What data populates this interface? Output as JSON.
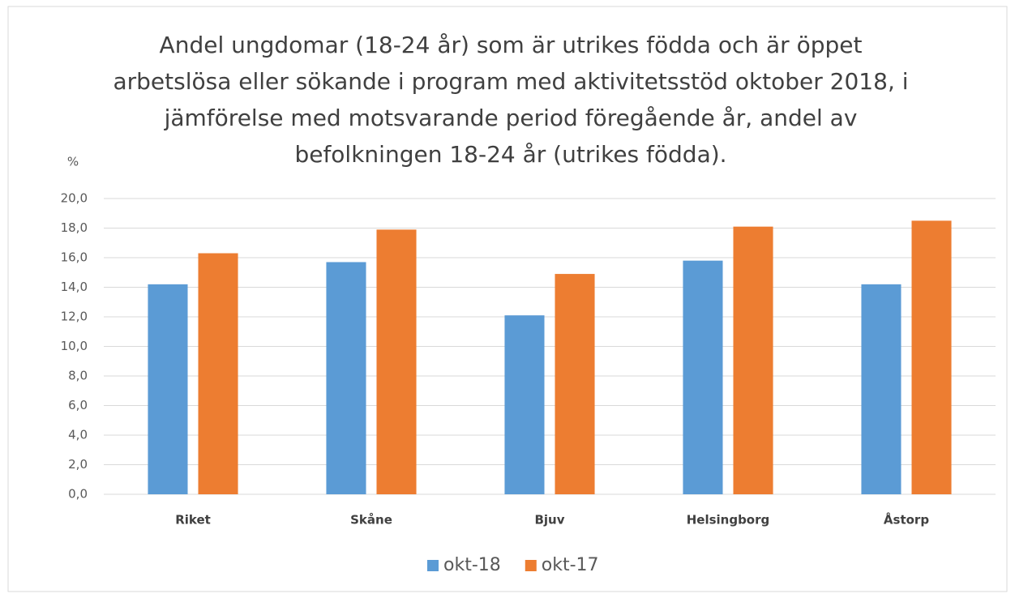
{
  "chart_data": {
    "type": "bar",
    "title": [
      "Andel ungdomar (18-24 år) som är utrikes födda och är öppet",
      "arbetslösa eller sökande i program med aktivitetsstöd oktober 2018, i",
      "jämförelse med motsvarande period föregående år, andel av",
      "befolkningen 18-24 år (utrikes födda)."
    ],
    "y_label": "%",
    "categories": [
      "Riket",
      "Skåne",
      "Bjuv",
      "Helsingborg",
      "Åstorp"
    ],
    "series": [
      {
        "name": "okt-18",
        "color": "#5b9bd5",
        "values": [
          14.2,
          15.7,
          12.1,
          15.8,
          14.2
        ]
      },
      {
        "name": "okt-17",
        "color": "#ed7d31",
        "values": [
          16.3,
          17.9,
          14.9,
          18.1,
          18.5
        ]
      }
    ],
    "ylim": [
      0,
      20
    ],
    "yticks": [
      {
        "value": 0,
        "label": "0,0"
      },
      {
        "value": 2,
        "label": "2,0"
      },
      {
        "value": 4,
        "label": "4,0"
      },
      {
        "value": 6,
        "label": "6,0"
      },
      {
        "value": 8,
        "label": "8,0"
      },
      {
        "value": 10,
        "label": "10,0"
      },
      {
        "value": 12,
        "label": "12,0"
      },
      {
        "value": 14,
        "label": "14,0"
      },
      {
        "value": 16,
        "label": "16,0"
      },
      {
        "value": 18,
        "label": "18,0"
      },
      {
        "value": 20,
        "label": "20,0"
      }
    ],
    "grid": true,
    "legend": "bottom"
  }
}
